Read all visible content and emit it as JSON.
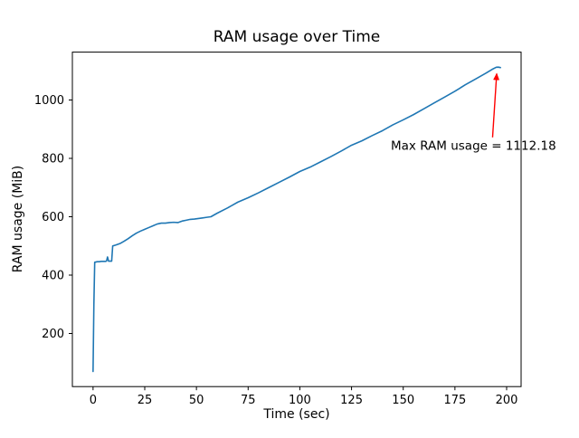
{
  "chart_data": {
    "type": "line",
    "title": "RAM usage over Time",
    "xlabel": "Time (sec)",
    "ylabel": "RAM usage (MiB)",
    "xlim": [
      -10,
      207
    ],
    "ylim": [
      18,
      1164
    ],
    "xticks": [
      0,
      25,
      50,
      75,
      100,
      125,
      150,
      175,
      200
    ],
    "yticks": [
      200,
      400,
      600,
      800,
      1000
    ],
    "grid": false,
    "legend_position": "none",
    "line_color": "#1f77b4",
    "series": [
      {
        "name": "RAM usage",
        "points": [
          [
            0,
            70
          ],
          [
            0.4,
            300
          ],
          [
            0.8,
            444
          ],
          [
            2,
            446
          ],
          [
            3,
            446
          ],
          [
            4,
            447
          ],
          [
            5,
            447
          ],
          [
            6,
            447
          ],
          [
            6.5,
            448
          ],
          [
            7,
            462
          ],
          [
            7.5,
            448
          ],
          [
            9,
            448
          ],
          [
            9.5,
            500
          ],
          [
            11,
            503
          ],
          [
            13,
            508
          ],
          [
            15,
            516
          ],
          [
            17,
            525
          ],
          [
            19,
            535
          ],
          [
            21,
            544
          ],
          [
            23,
            551
          ],
          [
            25,
            557
          ],
          [
            27,
            563
          ],
          [
            29,
            569
          ],
          [
            31,
            575
          ],
          [
            33,
            578
          ],
          [
            35,
            578
          ],
          [
            37,
            580
          ],
          [
            39,
            581
          ],
          [
            41,
            580
          ],
          [
            43,
            585
          ],
          [
            45,
            588
          ],
          [
            47,
            591
          ],
          [
            49,
            592
          ],
          [
            51,
            594
          ],
          [
            53,
            596
          ],
          [
            55,
            598
          ],
          [
            57,
            600
          ],
          [
            60,
            612
          ],
          [
            65,
            630
          ],
          [
            70,
            650
          ],
          [
            75,
            665
          ],
          [
            80,
            682
          ],
          [
            85,
            700
          ],
          [
            90,
            718
          ],
          [
            95,
            736
          ],
          [
            100,
            755
          ],
          [
            105,
            770
          ],
          [
            110,
            788
          ],
          [
            115,
            806
          ],
          [
            120,
            825
          ],
          [
            125,
            845
          ],
          [
            130,
            860
          ],
          [
            135,
            878
          ],
          [
            140,
            895
          ],
          [
            145,
            915
          ],
          [
            150,
            932
          ],
          [
            155,
            950
          ],
          [
            160,
            970
          ],
          [
            165,
            990
          ],
          [
            170,
            1010
          ],
          [
            175,
            1030
          ],
          [
            180,
            1052
          ],
          [
            185,
            1072
          ],
          [
            190,
            1092
          ],
          [
            193,
            1105
          ],
          [
            195,
            1112.18
          ],
          [
            196,
            1112.5
          ],
          [
            197,
            1111
          ]
        ]
      }
    ],
    "max_value": 1112.18,
    "annotation": {
      "text": "Max RAM usage = 1112.18",
      "color": "#ff0000",
      "text_pos": [
        144,
        830
      ],
      "arrow_start": [
        193.2,
        872
      ],
      "arrow_end": [
        195.2,
        1090
      ]
    }
  }
}
